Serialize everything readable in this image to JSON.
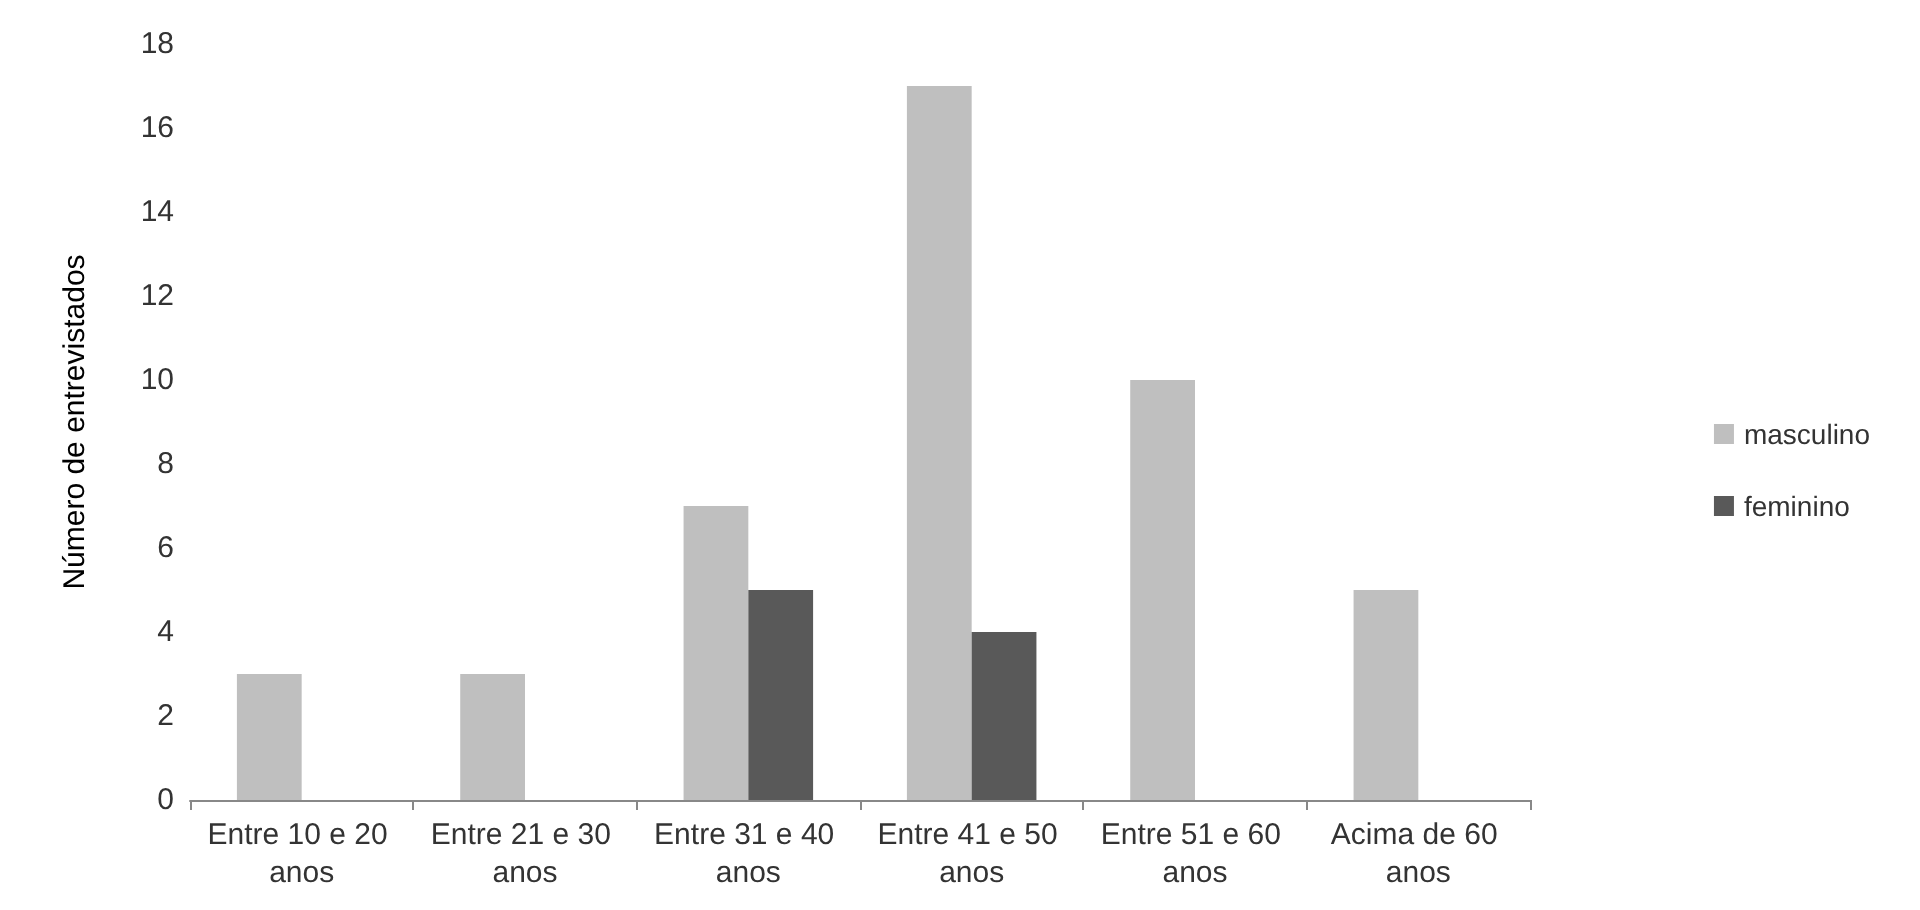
{
  "chart_data": {
    "type": "bar",
    "ylabel": "Número de entrevistados",
    "categories": [
      "Entre 10 e 20 anos",
      "Entre 21 e 30 anos",
      "Entre 31 e 40 anos",
      "Entre 41 e 50 anos",
      "Entre 51 e 60 anos",
      "Acima de 60 anos"
    ],
    "series": [
      {
        "name": "masculino",
        "color": "#bfbfbf",
        "values": [
          3,
          3,
          7,
          17,
          10,
          5
        ]
      },
      {
        "name": "feminino",
        "color": "#595959",
        "values": [
          0,
          0,
          5,
          4,
          0,
          0
        ]
      }
    ],
    "ylim": [
      0,
      18
    ],
    "yticks": [
      0,
      2,
      4,
      6,
      8,
      10,
      12,
      14,
      16,
      18
    ],
    "grid": false,
    "legend": "right"
  }
}
